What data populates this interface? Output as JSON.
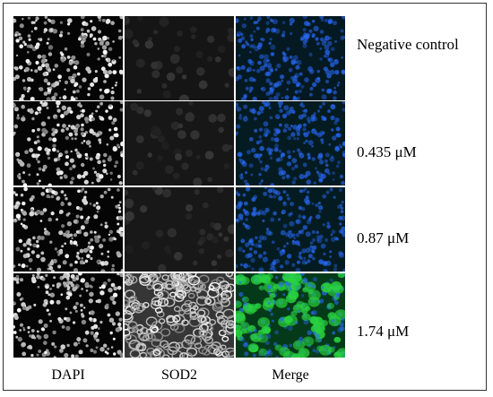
{
  "figure": {
    "columns": [
      {
        "label": "DAPI",
        "channel": "dapi",
        "color": "#ffffff"
      },
      {
        "label": "SOD2",
        "channel": "sod2",
        "color": "#ffffff"
      },
      {
        "label": "Merge",
        "channel": "merge",
        "colors": [
          "#2a6cff",
          "#29d43a"
        ]
      }
    ],
    "rows": [
      {
        "label": "Negative control",
        "sod2_level": 0.08
      },
      {
        "label": "0.435 μM",
        "sod2_level": 0.12
      },
      {
        "label": "0.87 μM",
        "sod2_level": 0.15
      },
      {
        "label": "1.74 μM",
        "sod2_level": 0.9
      }
    ]
  }
}
